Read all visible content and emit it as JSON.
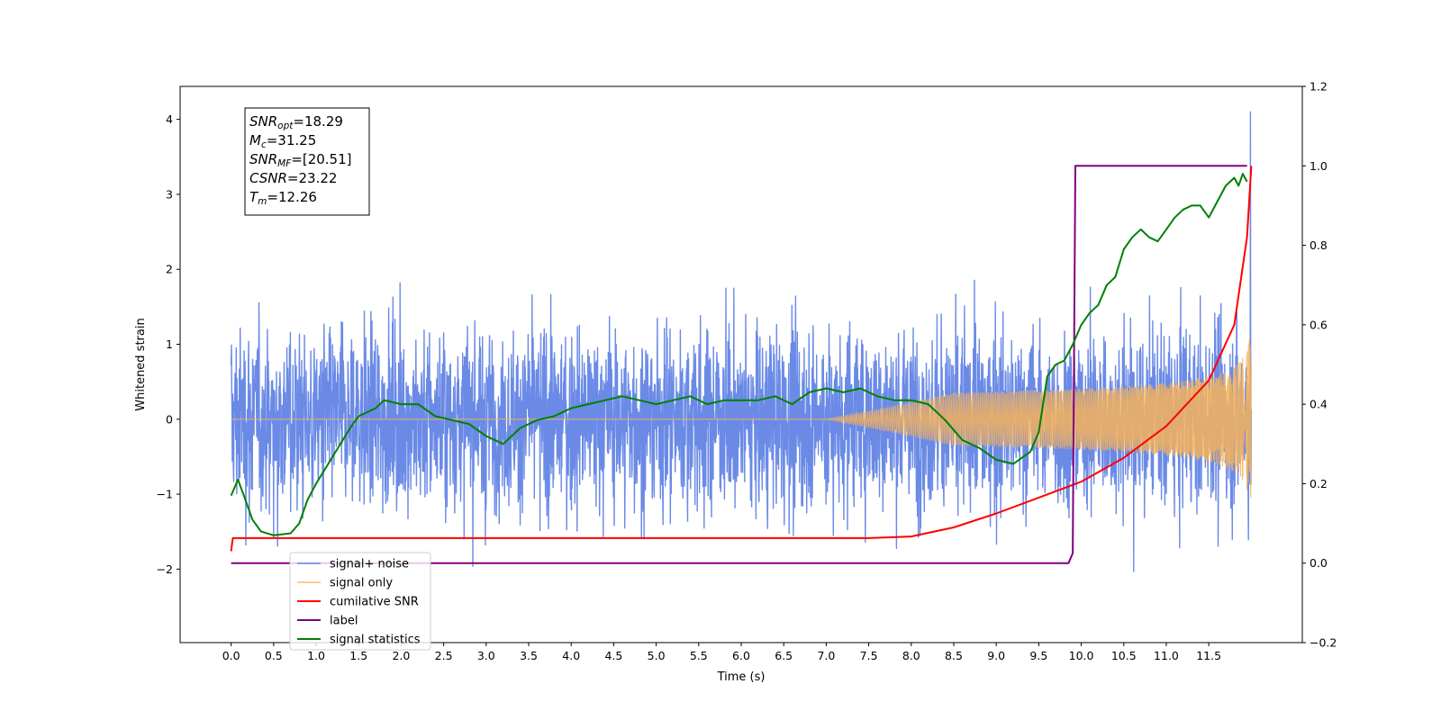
{
  "chart_data": {
    "type": "line",
    "xlabel": "Time (s)",
    "ylabel": "Whitened strain",
    "xlim": [
      -0.6,
      12.6
    ],
    "ylim": [
      -2.98,
      4.44
    ],
    "y2lim": [
      -0.2,
      1.2
    ],
    "xticks": [
      0.0,
      0.5,
      1.0,
      1.5,
      2.0,
      2.5,
      3.0,
      3.5,
      4.0,
      4.5,
      5.0,
      5.5,
      6.0,
      6.5,
      7.0,
      7.5,
      8.0,
      8.5,
      9.0,
      9.5,
      10.0,
      10.5,
      11.0,
      11.5
    ],
    "xtick_labels": [
      "0.0",
      "0.5",
      "1.0",
      "1.5",
      "2.0",
      "2.5",
      "3.0",
      "3.5",
      "4.0",
      "4.5",
      "5.0",
      "5.5",
      "6.0",
      "6.5",
      "7.0",
      "7.5",
      "8.0",
      "8.5",
      "9.0",
      "9.5",
      "10.0",
      "10.5",
      "11.0",
      "11.5"
    ],
    "yticks": [
      -2,
      -1,
      0,
      1,
      2,
      3,
      4
    ],
    "ytick_labels": [
      "−2",
      "−1",
      "0",
      "1",
      "2",
      "3",
      "4"
    ],
    "y2ticks": [
      -0.2,
      0.0,
      0.2,
      0.4,
      0.6,
      0.8,
      1.0,
      1.2
    ],
    "y2tick_labels": [
      "−0.2",
      "0.0",
      "0.2",
      "0.4",
      "0.6",
      "0.8",
      "1.0",
      "1.2"
    ],
    "grid": false,
    "legend_placement": "lower-left",
    "annotation": {
      "lines": [
        {
          "main": "SNR",
          "sub": "opt",
          "value": "=18.29"
        },
        {
          "main": "M",
          "sub": "c",
          "value": "=31.25"
        },
        {
          "main": "SNR",
          "sub": "MF",
          "value": "=[20.51]"
        },
        {
          "main": "CSNR",
          "sub": "",
          "value": "=23.22"
        },
        {
          "main": "T",
          "sub": "m",
          "value": "=12.26"
        }
      ]
    },
    "series": [
      {
        "name": "signal+ noise",
        "axis": "left",
        "color": "#6a8ae6",
        "kind": "noise",
        "duration": 12.0,
        "noise_level": 0.72,
        "peak": 4.1
      },
      {
        "name": "signal only",
        "axis": "left",
        "color": "#f5b25b",
        "kind": "chirp",
        "duration": 12.0,
        "onset": 7.5,
        "final_amplitude": 1.3
      },
      {
        "name": "cumilative SNR",
        "axis": "right",
        "color": "#ff0000",
        "x": [
          0.0,
          0.02,
          1.0,
          7.5,
          8.0,
          8.5,
          9.0,
          9.5,
          10.0,
          10.5,
          11.0,
          11.5,
          11.8,
          11.95,
          12.0
        ],
        "y": [
          0.03,
          0.063,
          0.063,
          0.063,
          0.067,
          0.09,
          0.125,
          0.165,
          0.205,
          0.265,
          0.345,
          0.46,
          0.6,
          0.82,
          1.0
        ]
      },
      {
        "name": "label",
        "axis": "right",
        "color": "#800080",
        "x": [
          0.0,
          9.85,
          9.9,
          9.93,
          11.95
        ],
        "y": [
          0.0,
          0.0,
          0.025,
          1.0,
          1.0
        ]
      },
      {
        "name": "signal statistics",
        "axis": "right",
        "color": "#008000",
        "x": [
          0.0,
          0.08,
          0.15,
          0.25,
          0.35,
          0.5,
          0.7,
          0.8,
          0.9,
          1.0,
          1.2,
          1.4,
          1.5,
          1.6,
          1.7,
          1.8,
          2.0,
          2.2,
          2.4,
          2.6,
          2.8,
          3.0,
          3.2,
          3.4,
          3.6,
          3.8,
          4.0,
          4.2,
          4.4,
          4.6,
          4.8,
          5.0,
          5.2,
          5.4,
          5.6,
          5.8,
          6.0,
          6.2,
          6.4,
          6.6,
          6.8,
          7.0,
          7.2,
          7.4,
          7.6,
          7.8,
          8.0,
          8.2,
          8.4,
          8.6,
          8.8,
          9.0,
          9.2,
          9.4,
          9.5,
          9.6,
          9.7,
          9.8,
          9.9,
          10.0,
          10.1,
          10.2,
          10.3,
          10.4,
          10.5,
          10.6,
          10.7,
          10.8,
          10.9,
          11.0,
          11.1,
          11.2,
          11.3,
          11.4,
          11.5,
          11.6,
          11.7,
          11.8,
          11.85,
          11.9,
          11.95
        ],
        "y": [
          0.17,
          0.21,
          0.17,
          0.11,
          0.08,
          0.07,
          0.075,
          0.1,
          0.16,
          0.2,
          0.27,
          0.34,
          0.37,
          0.38,
          0.39,
          0.41,
          0.4,
          0.4,
          0.37,
          0.36,
          0.35,
          0.32,
          0.3,
          0.34,
          0.36,
          0.37,
          0.39,
          0.4,
          0.41,
          0.42,
          0.41,
          0.4,
          0.41,
          0.42,
          0.4,
          0.41,
          0.41,
          0.41,
          0.42,
          0.4,
          0.43,
          0.44,
          0.43,
          0.44,
          0.42,
          0.41,
          0.41,
          0.4,
          0.36,
          0.31,
          0.29,
          0.26,
          0.25,
          0.28,
          0.33,
          0.47,
          0.5,
          0.51,
          0.55,
          0.6,
          0.63,
          0.65,
          0.7,
          0.72,
          0.79,
          0.82,
          0.84,
          0.82,
          0.81,
          0.84,
          0.87,
          0.89,
          0.9,
          0.9,
          0.87,
          0.91,
          0.95,
          0.97,
          0.95,
          0.98,
          0.96
        ]
      }
    ]
  }
}
